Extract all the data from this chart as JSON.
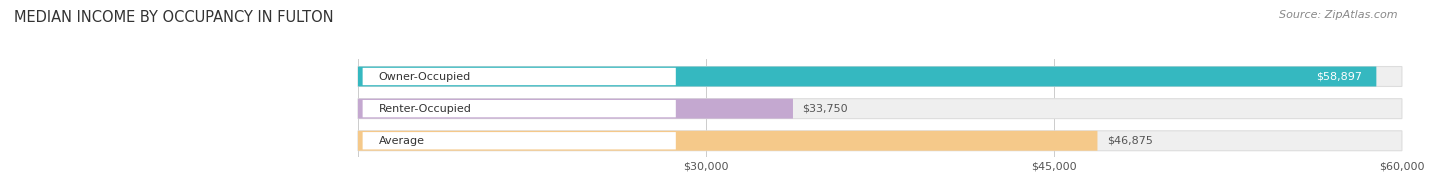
{
  "title": "MEDIAN INCOME BY OCCUPANCY IN FULTON",
  "source": "Source: ZipAtlas.com",
  "categories": [
    "Owner-Occupied",
    "Renter-Occupied",
    "Average"
  ],
  "values": [
    58897,
    33750,
    46875
  ],
  "bar_colors": [
    "#35b8c0",
    "#c4a8d0",
    "#f5c98a"
  ],
  "bar_bg_color": "#efefef",
  "bar_edge_color": "#dddddd",
  "value_labels": [
    "$58,897",
    "$33,750",
    "$46,875"
  ],
  "value_colors": [
    "#ffffff",
    "#555555",
    "#555555"
  ],
  "xlim_data": [
    0,
    60000
  ],
  "xstart": 15000,
  "xtick_positions": [
    15000,
    30000,
    45000,
    60000
  ],
  "xtick_labels": [
    "",
    "$30,000",
    "$45,000",
    "$60,000"
  ],
  "title_fontsize": 10.5,
  "label_fontsize": 8,
  "tick_fontsize": 8,
  "source_fontsize": 8,
  "bar_height": 0.62,
  "bar_gap": 0.38,
  "background_color": "#ffffff",
  "grid_color": "#cccccc"
}
